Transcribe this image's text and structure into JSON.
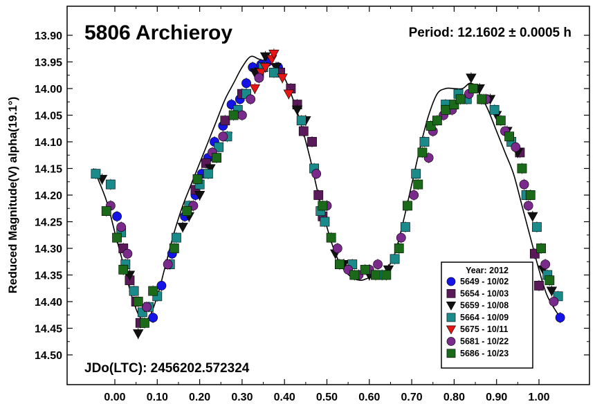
{
  "chart_data": {
    "type": "scatter",
    "title": "5806 Archieroy",
    "period_label": "Period: 12.1602 ± 0.0005 h",
    "jd_label": "JDo(LTC): 2456202.572324",
    "ylabel": "Reduced Magnitude(V) alpha(19.1°)",
    "xlabel": "",
    "xlim": [
      -0.07,
      1.07
    ],
    "ylim": [
      14.55,
      13.85
    ],
    "y_inverted": true,
    "x_ticks": [
      0.0,
      0.1,
      0.2,
      0.3,
      0.4,
      0.5,
      0.6,
      0.7,
      0.8,
      0.9,
      1.0
    ],
    "x_tick_labels": [
      "0.00",
      "0.10",
      "0.20",
      "0.30",
      "0.40",
      "0.50",
      "0.60",
      "0.70",
      "0.80",
      "0.90",
      "1.00"
    ],
    "y_ticks": [
      13.9,
      13.95,
      14.0,
      14.05,
      14.1,
      14.15,
      14.2,
      14.25,
      14.3,
      14.35,
      14.4,
      14.45,
      14.5
    ],
    "y_tick_labels": [
      "13.90",
      "13.95",
      "14.00",
      "14.05",
      "14.10",
      "14.15",
      "14.20",
      "14.25",
      "14.30",
      "14.35",
      "14.40",
      "14.45",
      "14.50"
    ],
    "legend": {
      "title": "Year: 2012",
      "placement": "bottom-right",
      "entries": [
        {
          "label": "5649 - 10/02",
          "color": "#1414e6",
          "marker": "circle"
        },
        {
          "label": "5654 - 10/03",
          "color": "#5a1a5a",
          "marker": "square"
        },
        {
          "label": "5659 - 10/08",
          "color": "#111111",
          "marker": "triangle-down"
        },
        {
          "label": "5664 - 10/09",
          "color": "#1a8a8a",
          "marker": "square"
        },
        {
          "label": "5675 - 10/11",
          "color": "#e61414",
          "marker": "triangle-down"
        },
        {
          "label": "5681 - 10/22",
          "color": "#7a2a8a",
          "marker": "circle"
        },
        {
          "label": "5686 - 10/23",
          "color": "#1a6a1a",
          "marker": "square"
        }
      ]
    },
    "fit_curve": {
      "x": [
        -0.05,
        -0.02,
        0.0,
        0.02,
        0.04,
        0.06,
        0.08,
        0.1,
        0.12,
        0.14,
        0.16,
        0.18,
        0.2,
        0.22,
        0.24,
        0.26,
        0.28,
        0.3,
        0.32,
        0.34,
        0.36,
        0.37,
        0.38,
        0.4,
        0.42,
        0.44,
        0.46,
        0.48,
        0.5,
        0.52,
        0.54,
        0.56,
        0.58,
        0.6,
        0.62,
        0.64,
        0.66,
        0.68,
        0.7,
        0.72,
        0.74,
        0.76,
        0.78,
        0.8,
        0.82,
        0.84,
        0.86,
        0.88,
        0.9,
        0.92,
        0.94,
        0.96,
        0.98,
        1.0,
        1.02,
        1.05
      ],
      "y": [
        14.15,
        14.21,
        14.27,
        14.33,
        14.39,
        14.43,
        14.43,
        14.39,
        14.33,
        14.27,
        14.22,
        14.18,
        14.14,
        14.1,
        14.06,
        14.02,
        13.99,
        13.96,
        13.94,
        13.945,
        13.95,
        13.955,
        13.96,
        13.98,
        14.02,
        14.07,
        14.13,
        14.2,
        14.26,
        14.31,
        14.34,
        14.355,
        14.36,
        14.355,
        14.35,
        14.34,
        14.31,
        14.25,
        14.18,
        14.11,
        14.05,
        14.01,
        14.0,
        14.0,
        14.0,
        13.99,
        14.01,
        14.04,
        14.08,
        14.12,
        14.16,
        14.22,
        14.28,
        14.34,
        14.39,
        14.43
      ]
    },
    "series": [
      {
        "name": "5649 - 10/02",
        "points": [
          [
            0.005,
            14.24
          ],
          [
            0.045,
            14.38
          ],
          [
            0.09,
            14.43
          ],
          [
            0.11,
            14.37
          ],
          [
            0.135,
            14.31
          ],
          [
            0.165,
            14.24
          ],
          [
            0.19,
            14.2
          ],
          [
            0.205,
            14.16
          ],
          [
            0.22,
            14.13
          ],
          [
            0.235,
            14.1
          ],
          [
            0.255,
            14.07
          ],
          [
            0.275,
            14.03
          ],
          [
            0.295,
            14.02
          ],
          [
            0.31,
            13.99
          ],
          [
            0.325,
            13.96
          ],
          [
            0.345,
            13.955
          ],
          [
            0.36,
            13.95
          ],
          [
            0.385,
            13.96
          ],
          [
            1.05,
            14.43
          ]
        ]
      },
      {
        "name": "5654 - 10/03",
        "points": [
          [
            0.02,
            14.3
          ],
          [
            0.035,
            14.36
          ],
          [
            0.05,
            14.4
          ],
          [
            0.06,
            14.44
          ],
          [
            0.19,
            14.19
          ],
          [
            0.215,
            14.14
          ],
          [
            0.26,
            14.06
          ],
          [
            0.3,
            14.01
          ],
          [
            0.34,
            13.97
          ],
          [
            0.39,
            13.97
          ],
          [
            0.415,
            14.0
          ],
          [
            0.43,
            14.03
          ],
          [
            0.445,
            14.08
          ],
          [
            0.465,
            14.1
          ],
          [
            0.48,
            14.2
          ],
          [
            0.49,
            14.24
          ],
          [
            0.955,
            14.12
          ],
          [
            0.99,
            14.31
          ],
          [
            1.0,
            14.37
          ]
        ]
      },
      {
        "name": "5659 - 10/08",
        "points": [
          [
            -0.03,
            14.17
          ],
          [
            0.035,
            14.35
          ],
          [
            0.055,
            14.46
          ],
          [
            0.16,
            14.26
          ],
          [
            0.175,
            14.24
          ],
          [
            0.2,
            14.2
          ],
          [
            0.225,
            14.15
          ],
          [
            0.265,
            14.09
          ],
          [
            0.33,
            13.97
          ],
          [
            0.355,
            13.94
          ],
          [
            0.38,
            13.96
          ],
          [
            0.43,
            14.04
          ],
          [
            0.45,
            14.06
          ],
          [
            0.52,
            14.31
          ],
          [
            0.54,
            14.33
          ],
          [
            0.6,
            14.35
          ],
          [
            0.645,
            14.34
          ],
          [
            0.84,
            13.98
          ],
          [
            0.86,
            14.0
          ],
          [
            0.885,
            14.02
          ],
          [
            0.9,
            14.05
          ],
          [
            0.925,
            14.08
          ],
          [
            0.95,
            14.12
          ],
          [
            0.985,
            14.24
          ],
          [
            1.01,
            14.34
          ],
          [
            1.03,
            14.38
          ]
        ]
      },
      {
        "name": "5664 - 10/09",
        "points": [
          [
            -0.045,
            14.16
          ],
          [
            -0.01,
            14.18
          ],
          [
            0.015,
            14.27
          ],
          [
            0.025,
            14.33
          ],
          [
            0.045,
            14.38
          ],
          [
            0.065,
            14.42
          ],
          [
            0.08,
            14.41
          ],
          [
            0.1,
            14.39
          ],
          [
            0.13,
            14.33
          ],
          [
            0.145,
            14.28
          ],
          [
            0.175,
            14.22
          ],
          [
            0.2,
            14.18
          ],
          [
            0.22,
            14.16
          ],
          [
            0.245,
            14.11
          ],
          [
            0.265,
            14.09
          ],
          [
            0.29,
            14.04
          ],
          [
            0.31,
            14.01
          ],
          [
            0.35,
            13.96
          ],
          [
            0.375,
            13.97
          ],
          [
            0.44,
            14.06
          ],
          [
            0.47,
            14.15
          ],
          [
            0.485,
            14.23
          ],
          [
            0.495,
            14.25
          ],
          [
            0.56,
            14.33
          ],
          [
            0.63,
            14.35
          ],
          [
            0.66,
            14.32
          ],
          [
            0.685,
            14.26
          ],
          [
            0.71,
            14.16
          ],
          [
            0.73,
            14.1
          ],
          [
            0.78,
            14.03
          ],
          [
            0.81,
            14.01
          ],
          [
            0.83,
            14.02
          ],
          [
            0.87,
            14.02
          ],
          [
            0.895,
            14.04
          ],
          [
            0.935,
            14.1
          ],
          [
            0.97,
            14.2
          ],
          [
            0.995,
            14.26
          ],
          [
            1.02,
            14.35
          ],
          [
            1.045,
            14.39
          ]
        ]
      },
      {
        "name": "5675 - 10/11",
        "points": [
          [
            0.33,
            14.0
          ],
          [
            0.345,
            13.97
          ],
          [
            0.355,
            13.96
          ],
          [
            0.37,
            13.945
          ],
          [
            0.375,
            13.935
          ],
          [
            0.395,
            13.98
          ],
          [
            0.41,
            14.01
          ]
        ]
      },
      {
        "name": "5681 - 10/22",
        "points": [
          [
            -0.01,
            14.22
          ],
          [
            0.015,
            14.26
          ],
          [
            0.03,
            14.31
          ],
          [
            0.075,
            14.41
          ],
          [
            0.125,
            14.33
          ],
          [
            0.185,
            14.22
          ],
          [
            0.23,
            14.12
          ],
          [
            0.255,
            14.09
          ],
          [
            0.3,
            14.05
          ],
          [
            0.32,
            14.02
          ],
          [
            0.34,
            13.98
          ],
          [
            0.475,
            14.16
          ],
          [
            0.5,
            14.22
          ],
          [
            0.525,
            14.3
          ],
          [
            0.55,
            14.34
          ],
          [
            0.575,
            14.35
          ],
          [
            0.6,
            14.34
          ],
          [
            0.62,
            14.33
          ],
          [
            0.675,
            14.28
          ],
          [
            0.705,
            14.2
          ],
          [
            0.74,
            14.13
          ],
          [
            0.75,
            14.08
          ],
          [
            0.775,
            14.05
          ],
          [
            0.795,
            14.04
          ],
          [
            0.835,
            14.01
          ],
          [
            0.875,
            14.02
          ],
          [
            0.92,
            14.08
          ],
          [
            0.945,
            14.11
          ],
          [
            0.965,
            14.18
          ],
          [
            0.975,
            14.22
          ],
          [
            1.015,
            14.33
          ],
          [
            1.035,
            14.4
          ]
        ]
      },
      {
        "name": "5686 - 10/23",
        "points": [
          [
            -0.02,
            14.23
          ],
          [
            0.005,
            14.28
          ],
          [
            0.02,
            14.34
          ],
          [
            0.055,
            14.4
          ],
          [
            0.07,
            14.44
          ],
          [
            0.09,
            14.38
          ],
          [
            0.14,
            14.3
          ],
          [
            0.17,
            14.23
          ],
          [
            0.195,
            14.17
          ],
          [
            0.24,
            14.13
          ],
          [
            0.28,
            14.05
          ],
          [
            0.49,
            14.22
          ],
          [
            0.51,
            14.28
          ],
          [
            0.53,
            14.33
          ],
          [
            0.565,
            14.35
          ],
          [
            0.59,
            14.34
          ],
          [
            0.615,
            14.35
          ],
          [
            0.64,
            14.35
          ],
          [
            0.67,
            14.3
          ],
          [
            0.69,
            14.22
          ],
          [
            0.715,
            14.18
          ],
          [
            0.725,
            14.12
          ],
          [
            0.745,
            14.07
          ],
          [
            0.76,
            14.06
          ],
          [
            0.78,
            14.04
          ],
          [
            0.8,
            14.03
          ],
          [
            0.815,
            14.02
          ],
          [
            0.845,
            14.0
          ],
          [
            0.865,
            14.02
          ],
          [
            0.91,
            14.06
          ],
          [
            0.93,
            14.09
          ],
          [
            0.96,
            14.15
          ],
          [
            0.98,
            14.2
          ],
          [
            1.005,
            14.3
          ],
          [
            1.025,
            14.36
          ]
        ]
      }
    ]
  }
}
